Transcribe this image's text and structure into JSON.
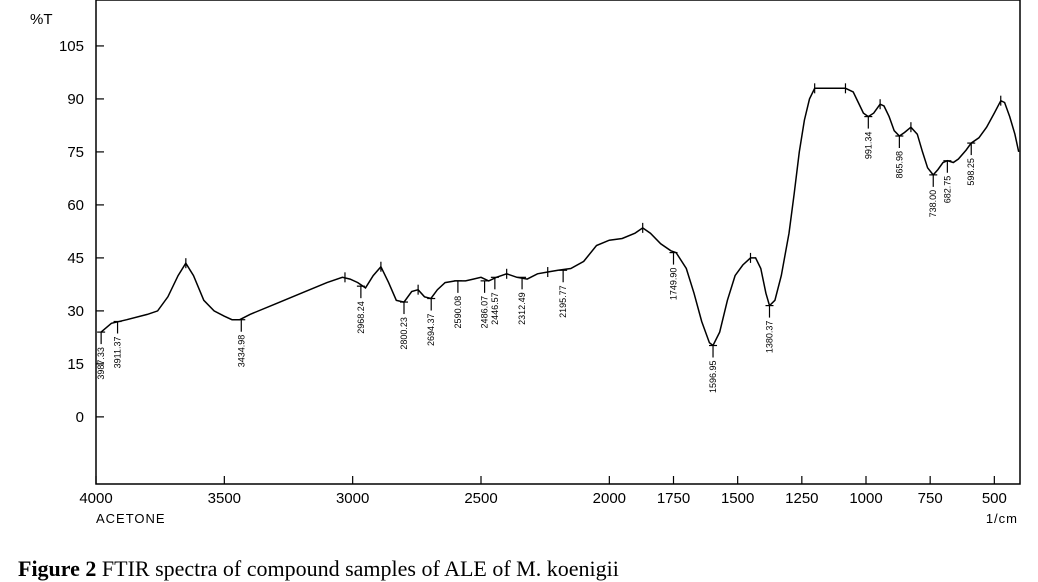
{
  "chart_data": {
    "type": "line",
    "ylabel": "%T",
    "xlabel": "1/cm",
    "annotation_left": "ACETONE",
    "xlim": [
      4000,
      400
    ],
    "ylim": [
      -19,
      118
    ],
    "xticks": [
      4000,
      3500,
      3000,
      2500,
      2000,
      1750,
      1500,
      1250,
      1000,
      750,
      500
    ],
    "yticks": [
      0,
      15,
      30,
      45,
      60,
      75,
      90,
      105
    ],
    "series": [
      {
        "points": [
          [
            3980,
            24
          ],
          [
            3940,
            26.5
          ],
          [
            3880,
            27.5
          ],
          [
            3800,
            29
          ],
          [
            3760,
            30
          ],
          [
            3720,
            34
          ],
          [
            3680,
            40
          ],
          [
            3650,
            43.5
          ],
          [
            3620,
            40
          ],
          [
            3580,
            33
          ],
          [
            3540,
            30
          ],
          [
            3500,
            28.5
          ],
          [
            3470,
            27.5
          ],
          [
            3440,
            27.5
          ],
          [
            3400,
            29
          ],
          [
            3300,
            32
          ],
          [
            3200,
            35
          ],
          [
            3100,
            38
          ],
          [
            3040,
            39.5
          ],
          [
            3010,
            39
          ],
          [
            2980,
            38
          ],
          [
            2950,
            36.5
          ],
          [
            2920,
            40
          ],
          [
            2890,
            42.5
          ],
          [
            2860,
            38
          ],
          [
            2830,
            33
          ],
          [
            2800,
            32.5
          ],
          [
            2770,
            35.5
          ],
          [
            2745,
            36
          ],
          [
            2720,
            34
          ],
          [
            2695,
            33.5
          ],
          [
            2670,
            36
          ],
          [
            2640,
            38
          ],
          [
            2600,
            38.5
          ],
          [
            2560,
            38.5
          ],
          [
            2530,
            39
          ],
          [
            2500,
            39.5
          ],
          [
            2470,
            38.5
          ],
          [
            2440,
            39.5
          ],
          [
            2400,
            40.5
          ],
          [
            2360,
            39.5
          ],
          [
            2320,
            39
          ],
          [
            2280,
            40.5
          ],
          [
            2240,
            41
          ],
          [
            2200,
            41.5
          ],
          [
            2150,
            42
          ],
          [
            2100,
            44
          ],
          [
            2050,
            48.5
          ],
          [
            2000,
            50
          ],
          [
            1950,
            50.5
          ],
          [
            1900,
            52
          ],
          [
            1870,
            53.5
          ],
          [
            1840,
            52
          ],
          [
            1800,
            49
          ],
          [
            1760,
            47
          ],
          [
            1740,
            46.5
          ],
          [
            1700,
            42
          ],
          [
            1670,
            35
          ],
          [
            1640,
            27
          ],
          [
            1610,
            21
          ],
          [
            1596,
            20.2
          ],
          [
            1570,
            24
          ],
          [
            1540,
            33
          ],
          [
            1510,
            40
          ],
          [
            1480,
            43
          ],
          [
            1450,
            45
          ],
          [
            1430,
            45
          ],
          [
            1410,
            42
          ],
          [
            1390,
            35
          ],
          [
            1376,
            31.5
          ],
          [
            1355,
            33
          ],
          [
            1330,
            40
          ],
          [
            1300,
            52
          ],
          [
            1280,
            63
          ],
          [
            1260,
            75
          ],
          [
            1240,
            84
          ],
          [
            1220,
            90
          ],
          [
            1200,
            93
          ],
          [
            1160,
            93
          ],
          [
            1120,
            93
          ],
          [
            1080,
            93
          ],
          [
            1050,
            92
          ],
          [
            1030,
            89
          ],
          [
            1010,
            86
          ],
          [
            991,
            85
          ],
          [
            970,
            86
          ],
          [
            945,
            88.5
          ],
          [
            930,
            88
          ],
          [
            910,
            85
          ],
          [
            890,
            81
          ],
          [
            870,
            79.5
          ],
          [
            850,
            80.5
          ],
          [
            825,
            82
          ],
          [
            800,
            80
          ],
          [
            780,
            75
          ],
          [
            760,
            70.5
          ],
          [
            738,
            68.5
          ],
          [
            720,
            70
          ],
          [
            700,
            72
          ],
          [
            683,
            72.5
          ],
          [
            660,
            72
          ],
          [
            640,
            73
          ],
          [
            610,
            75.5
          ],
          [
            590,
            77.5
          ],
          [
            560,
            79
          ],
          [
            530,
            82
          ],
          [
            500,
            86
          ],
          [
            475,
            89.5
          ],
          [
            460,
            89
          ],
          [
            440,
            85
          ],
          [
            420,
            80
          ],
          [
            405,
            75
          ]
        ]
      }
    ],
    "peak_markers": [
      {
        "x": 3980,
        "y": 24,
        "label": "3987.33"
      },
      {
        "x": 3916,
        "y": 27,
        "label": "3911.37"
      },
      {
        "x": 3434,
        "y": 27.5,
        "label": "3434.98"
      },
      {
        "x": 2968,
        "y": 37,
        "label": "2968.24"
      },
      {
        "x": 2800,
        "y": 32.5,
        "label": "2800.23"
      },
      {
        "x": 2694,
        "y": 33.5,
        "label": "2694.37"
      },
      {
        "x": 2590,
        "y": 38.5,
        "label": "2590.08"
      },
      {
        "x": 2486,
        "y": 38.5,
        "label": "2486.07"
      },
      {
        "x": 2446,
        "y": 39.5,
        "label": "2446.57"
      },
      {
        "x": 2340,
        "y": 39.5,
        "label": "2312.49"
      },
      {
        "x": 2180,
        "y": 41.5,
        "label": "2195.77"
      },
      {
        "x": 1750,
        "y": 46.5,
        "label": "1749.90"
      },
      {
        "x": 1596,
        "y": 20.2,
        "label": "1596.95"
      },
      {
        "x": 1376,
        "y": 31.5,
        "label": "1380.37"
      },
      {
        "x": 991,
        "y": 85,
        "label": "991.34"
      },
      {
        "x": 870,
        "y": 79.5,
        "label": "865.98"
      },
      {
        "x": 738,
        "y": 68.5,
        "label": "738.00"
      },
      {
        "x": 683,
        "y": 72.5,
        "label": "682.75"
      },
      {
        "x": 590,
        "y": 77.5,
        "label": "598.25"
      }
    ],
    "top_markers": [
      {
        "x": 3650,
        "y": 43.5
      },
      {
        "x": 3030,
        "y": 39.5
      },
      {
        "x": 2890,
        "y": 42.5
      },
      {
        "x": 2745,
        "y": 36
      },
      {
        "x": 2400,
        "y": 40.5
      },
      {
        "x": 2240,
        "y": 41
      },
      {
        "x": 1870,
        "y": 53.5
      },
      {
        "x": 1450,
        "y": 45
      },
      {
        "x": 1200,
        "y": 93
      },
      {
        "x": 1080,
        "y": 93
      },
      {
        "x": 945,
        "y": 88.5
      },
      {
        "x": 825,
        "y": 82
      },
      {
        "x": 475,
        "y": 89.5
      }
    ]
  },
  "caption": {
    "bold": "Figure 2",
    "text": " FTIR spectra of compound samples of ALE of M. koenigii"
  }
}
